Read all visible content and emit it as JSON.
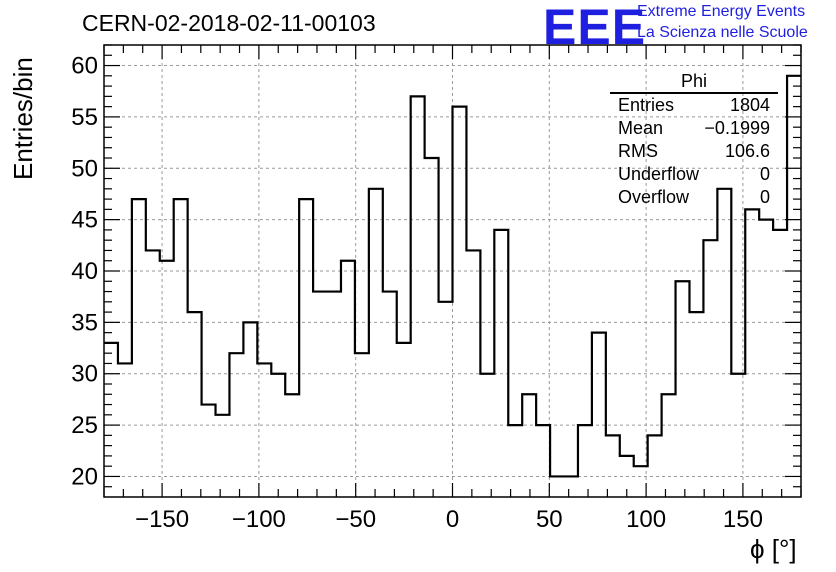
{
  "title": "CERN-02-2018-02-11-00103",
  "logo": {
    "mark": "EEE",
    "line1": "Extreme Energy Events",
    "line2": "La Scienza nelle Scuole",
    "color": "#1f1fe0"
  },
  "stats_box": {
    "title": "Phi",
    "rows": [
      {
        "label": "Entries",
        "value": "1804"
      },
      {
        "label": "Mean",
        "value": "−0.1999"
      },
      {
        "label": "RMS",
        "value": "106.6"
      },
      {
        "label": "Underflow",
        "value": "0"
      },
      {
        "label": "Overflow",
        "value": "0"
      }
    ]
  },
  "chart_data": {
    "type": "histogram",
    "xlabel": "ϕ [°]",
    "ylabel": "Entries/bin",
    "xlim": [
      -180,
      180
    ],
    "ylim": [
      18,
      62
    ],
    "bin_width": 7.2,
    "bin_edges_start": -180,
    "values": [
      33,
      31,
      47,
      42,
      41,
      47,
      36,
      27,
      26,
      32,
      35,
      31,
      30,
      28,
      47,
      38,
      38,
      41,
      32,
      48,
      38,
      33,
      57,
      51,
      37,
      56,
      42,
      30,
      44,
      25,
      28,
      25,
      20,
      20,
      25,
      34,
      24,
      22,
      21,
      24,
      28,
      39,
      36,
      43,
      48,
      30,
      46,
      45,
      44,
      59
    ],
    "x_ticks": [
      -150,
      -100,
      -50,
      0,
      50,
      100,
      150
    ],
    "x_tick_labels": [
      "−150",
      "−100",
      "−50",
      "0",
      "50",
      "100",
      "150"
    ],
    "y_ticks": [
      20,
      25,
      30,
      35,
      40,
      45,
      50,
      55,
      60
    ],
    "y_tick_labels": [
      "20",
      "25",
      "30",
      "35",
      "40",
      "45",
      "50",
      "55",
      "60"
    ],
    "grid": true,
    "line_color": "#000000"
  }
}
